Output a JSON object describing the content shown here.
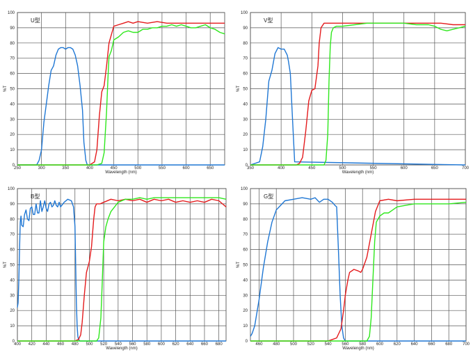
{
  "chart_data": [
    {
      "type": "line",
      "title": "U型",
      "xlabel": "Wavelength (nm)",
      "ylabel": "%T",
      "xlim": [
        250,
        680
      ],
      "ylim": [
        0,
        100
      ],
      "xticks": [
        250,
        300,
        350,
        400,
        450,
        500,
        550,
        600,
        650
      ],
      "yticks": [
        0,
        10,
        20,
        30,
        40,
        50,
        60,
        70,
        80,
        90,
        100
      ],
      "grid": true,
      "series": [
        {
          "color": "#1f77d4",
          "x": [
            250,
            290,
            295,
            300,
            305,
            310,
            315,
            320,
            325,
            330,
            335,
            340,
            345,
            350,
            355,
            360,
            365,
            370,
            375,
            380,
            385,
            388,
            392,
            395,
            400,
            680
          ],
          "y": [
            0,
            0,
            3,
            10,
            28,
            40,
            52,
            62,
            65,
            72,
            76,
            77,
            77,
            76,
            77,
            77,
            76,
            72,
            65,
            52,
            36,
            15,
            3,
            0,
            0,
            0
          ]
        },
        {
          "color": "#e41a1c",
          "x": [
            250,
            390,
            400,
            410,
            415,
            420,
            425,
            430,
            435,
            440,
            450,
            460,
            470,
            480,
            490,
            500,
            520,
            540,
            560,
            580,
            600,
            620,
            640,
            660,
            680
          ],
          "y": [
            0,
            0,
            0,
            2,
            10,
            32,
            48,
            52,
            65,
            80,
            91,
            92,
            93,
            94,
            93,
            94,
            93,
            94,
            93,
            93,
            93,
            93,
            93,
            93,
            93
          ]
        },
        {
          "color": "#2ee81c",
          "x": [
            250,
            415,
            425,
            430,
            435,
            438,
            440,
            445,
            450,
            460,
            470,
            480,
            490,
            500,
            510,
            520,
            530,
            540,
            550,
            560,
            570,
            580,
            590,
            600,
            610,
            620,
            630,
            640,
            650,
            660,
            670,
            680
          ],
          "y": [
            0,
            0,
            1,
            8,
            35,
            58,
            71,
            75,
            82,
            84,
            87,
            88,
            87,
            87,
            89,
            89,
            90,
            90,
            91,
            91,
            92,
            91,
            92,
            91,
            90,
            90,
            91,
            92,
            90,
            89,
            87,
            86
          ]
        }
      ]
    },
    {
      "type": "line",
      "title": "V型",
      "xlabel": "Wavelength (nm)",
      "ylabel": "%T",
      "xlim": [
        350,
        700
      ],
      "ylim": [
        0,
        100
      ],
      "xticks": [
        350,
        400,
        450,
        500,
        550,
        600,
        650,
        700
      ],
      "yticks": [
        0,
        10,
        20,
        30,
        40,
        50,
        60,
        70,
        80,
        90,
        100
      ],
      "grid": true,
      "series": [
        {
          "color": "#1f77d4",
          "x": [
            350,
            365,
            370,
            375,
            378,
            380,
            385,
            390,
            395,
            400,
            405,
            410,
            412,
            415,
            418,
            422,
            700
          ],
          "y": [
            0,
            2,
            12,
            30,
            45,
            55,
            62,
            73,
            77,
            76,
            76,
            72,
            68,
            60,
            35,
            2,
            0
          ]
        },
        {
          "color": "#e41a1c",
          "x": [
            350,
            425,
            430,
            435,
            440,
            445,
            450,
            455,
            460,
            462,
            465,
            470,
            480,
            500,
            520,
            540,
            560,
            580,
            600,
            620,
            640,
            660,
            680,
            700
          ],
          "y": [
            0,
            0,
            1,
            5,
            22,
            42,
            49,
            50,
            65,
            80,
            90,
            93,
            93,
            93,
            93,
            93,
            93,
            93,
            93,
            93,
            93,
            93,
            92,
            92
          ]
        },
        {
          "color": "#2ee81c",
          "x": [
            350,
            470,
            473,
            476,
            478,
            480,
            482,
            485,
            490,
            500,
            520,
            540,
            560,
            580,
            600,
            620,
            640,
            650,
            660,
            670,
            680,
            690,
            700
          ],
          "y": [
            0,
            0,
            3,
            20,
            55,
            78,
            87,
            90,
            91,
            91,
            92,
            93,
            93,
            93,
            93,
            92,
            92,
            91,
            89,
            88,
            89,
            90,
            91
          ]
        }
      ]
    },
    {
      "type": "line",
      "title": "B型",
      "xlabel": "Wavelength (nm)",
      "ylabel": "%T",
      "xlim": [
        400,
        690
      ],
      "ylim": [
        0,
        100
      ],
      "xticks": [
        400,
        420,
        440,
        460,
        480,
        500,
        520,
        540,
        560,
        580,
        600,
        620,
        640,
        660,
        680
      ],
      "yticks": [
        0,
        10,
        20,
        30,
        40,
        50,
        60,
        70,
        80,
        90,
        100
      ],
      "grid": true,
      "series": [
        {
          "color": "#1f77d4",
          "x": [
            400,
            401,
            402,
            403,
            404,
            405,
            406,
            408,
            410,
            412,
            414,
            416,
            418,
            420,
            422,
            424,
            426,
            428,
            430,
            432,
            434,
            436,
            438,
            440,
            442,
            444,
            446,
            448,
            450,
            452,
            454,
            456,
            458,
            460,
            465,
            470,
            475,
            478,
            480,
            481,
            482,
            483,
            484,
            485,
            487,
            690
          ],
          "y": [
            22,
            25,
            40,
            60,
            78,
            82,
            76,
            75,
            83,
            86,
            80,
            79,
            87,
            88,
            83,
            83,
            90,
            84,
            84,
            92,
            85,
            88,
            92,
            87,
            85,
            90,
            91,
            88,
            89,
            92,
            89,
            88,
            91,
            88,
            91,
            93,
            92,
            88,
            75,
            50,
            25,
            10,
            3,
            1,
            0,
            0
          ]
        },
        {
          "color": "#e41a1c",
          "x": [
            400,
            480,
            485,
            488,
            490,
            493,
            496,
            500,
            503,
            506,
            508,
            510,
            515,
            520,
            530,
            540,
            550,
            560,
            570,
            580,
            590,
            600,
            610,
            620,
            630,
            640,
            650,
            660,
            670,
            680,
            685,
            690
          ],
          "y": [
            0,
            0,
            1,
            4,
            12,
            30,
            45,
            52,
            62,
            80,
            88,
            90,
            90,
            91,
            93,
            92,
            93,
            92,
            93,
            91,
            93,
            92,
            93,
            91,
            92,
            91,
            92,
            91,
            93,
            92,
            90,
            88
          ]
        },
        {
          "color": "#2ee81c",
          "x": [
            400,
            510,
            513,
            516,
            518,
            520,
            523,
            526,
            530,
            535,
            540,
            550,
            560,
            570,
            580,
            590,
            600,
            620,
            640,
            660,
            680,
            690
          ],
          "y": [
            0,
            0,
            2,
            15,
            40,
            65,
            75,
            80,
            85,
            88,
            91,
            93,
            93,
            94,
            93,
            94,
            94,
            94,
            94,
            94,
            94,
            93
          ]
        }
      ]
    },
    {
      "type": "line",
      "title": "G型",
      "xlabel": "Wavelength (nm)",
      "ylabel": "%T",
      "xlim": [
        450,
        700
      ],
      "ylim": [
        0,
        100
      ],
      "xticks": [
        460,
        480,
        500,
        520,
        540,
        560,
        580,
        600,
        620,
        640,
        660,
        680,
        700
      ],
      "yticks": [
        0,
        10,
        20,
        30,
        40,
        50,
        60,
        70,
        80,
        90,
        100
      ],
      "grid": true,
      "series": [
        {
          "color": "#1f77d4",
          "x": [
            450,
            452,
            455,
            460,
            465,
            470,
            475,
            480,
            485,
            490,
            500,
            510,
            520,
            525,
            530,
            535,
            540,
            545,
            548,
            550,
            552,
            554,
            556,
            558,
            560,
            700
          ],
          "y": [
            3,
            5,
            10,
            27,
            48,
            65,
            78,
            86,
            89,
            92,
            93,
            94,
            93,
            94,
            91,
            93,
            93,
            91,
            89,
            88,
            60,
            30,
            10,
            2,
            0,
            0
          ]
        },
        {
          "color": "#e41a1c",
          "x": [
            450,
            540,
            545,
            550,
            555,
            558,
            560,
            563,
            565,
            570,
            575,
            578,
            580,
            585,
            590,
            595,
            600,
            610,
            620,
            640,
            660,
            680,
            700
          ],
          "y": [
            0,
            0,
            1,
            2,
            8,
            20,
            30,
            40,
            45,
            47,
            46,
            45,
            47,
            55,
            70,
            85,
            92,
            93,
            92,
            93,
            93,
            93,
            93
          ]
        },
        {
          "color": "#2ee81c",
          "x": [
            450,
            585,
            588,
            590,
            592,
            594,
            596,
            600,
            605,
            610,
            615,
            620,
            630,
            640,
            660,
            680,
            700
          ],
          "y": [
            0,
            0,
            3,
            15,
            40,
            65,
            78,
            82,
            84,
            84,
            86,
            88,
            89,
            90,
            90,
            90,
            91
          ]
        }
      ]
    }
  ]
}
